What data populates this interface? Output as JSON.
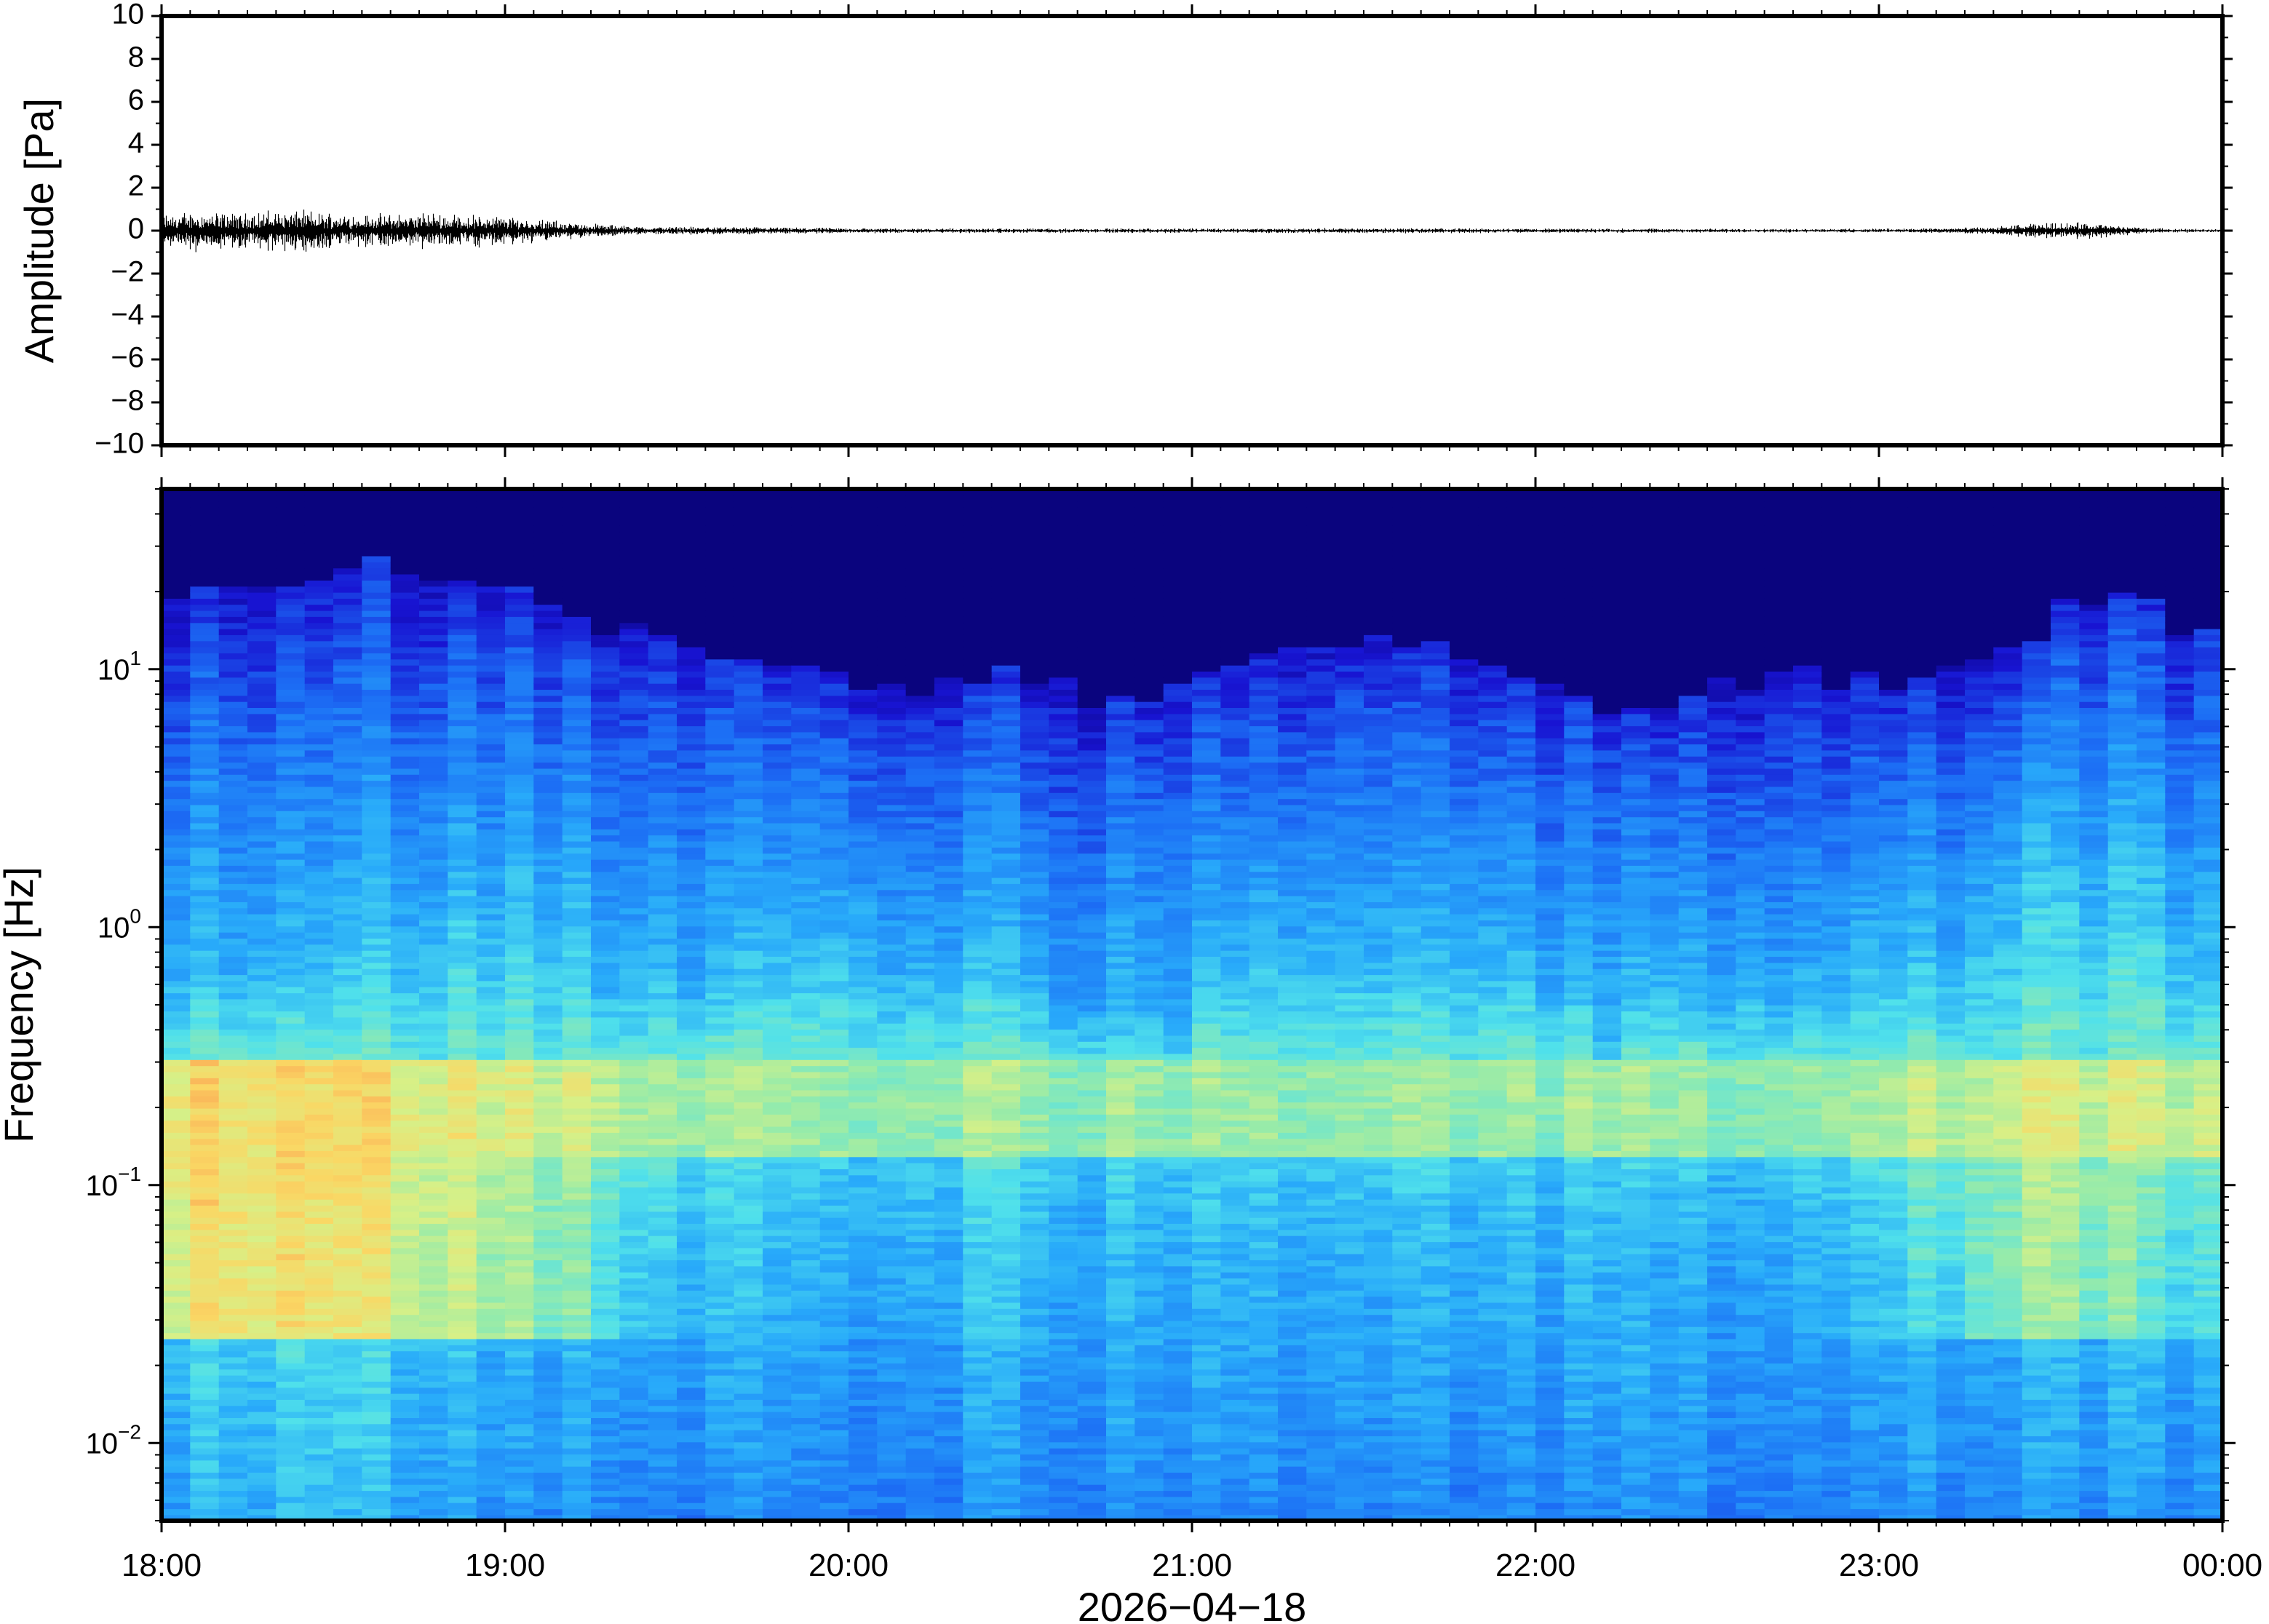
{
  "chart_data": [
    {
      "type": "line",
      "ylabel": "Amplitude [Pa]",
      "ylim": [
        -10,
        10
      ],
      "yticks": [
        "10",
        "8",
        "6",
        "4",
        "2",
        "0",
        "−2",
        "−4",
        "−6",
        "−8",
        "−10"
      ],
      "ytick_values": [
        10,
        8,
        6,
        4,
        2,
        0,
        -2,
        -4,
        -6,
        -8,
        -10
      ],
      "xlim_hours": [
        0,
        6
      ],
      "series": [
        {
          "envelope_hours": [
            0.0,
            0.1,
            0.2,
            0.3,
            0.4,
            0.5,
            0.6,
            0.8,
            1.0,
            1.2,
            1.4,
            1.6,
            2.0,
            2.5,
            3.0,
            3.5,
            4.0,
            4.5,
            5.0,
            5.3,
            5.5,
            5.6,
            5.8,
            6.0
          ],
          "envelope_amplitude": [
            0.5,
            0.6,
            0.55,
            0.6,
            0.65,
            0.55,
            0.5,
            0.55,
            0.45,
            0.25,
            0.12,
            0.12,
            0.08,
            0.07,
            0.07,
            0.08,
            0.07,
            0.06,
            0.06,
            0.1,
            0.25,
            0.25,
            0.07,
            0.05
          ]
        }
      ]
    },
    {
      "type": "heatmap",
      "ylabel": "Frequency [Hz]",
      "yscale": "log",
      "ylim": [
        0.005,
        50
      ],
      "yticks": [
        {
          "base": "10",
          "exp": "1",
          "value": 10
        },
        {
          "base": "10",
          "exp": "0",
          "value": 1
        },
        {
          "base": "10",
          "exp": "−1",
          "value": 0.1
        },
        {
          "base": "10",
          "exp": "−2",
          "value": 0.01
        }
      ],
      "colormap": "jet",
      "xticks": [
        "18:00",
        "19:00",
        "20:00",
        "21:00",
        "22:00",
        "23:00",
        "00:00"
      ],
      "xlabel": "2026−04−18",
      "column_hours": [
        0.0,
        0.25,
        0.5,
        0.75,
        1.0,
        1.25,
        1.5,
        1.75,
        2.0,
        2.25,
        2.5,
        2.75,
        3.0,
        3.25,
        3.5,
        3.75,
        4.0,
        4.25,
        4.5,
        4.75,
        5.0,
        5.25,
        5.5,
        5.75,
        6.0
      ],
      "upper_edge_hz": [
        22,
        24,
        25,
        24,
        20,
        15,
        12,
        10,
        10,
        9,
        10,
        7,
        8,
        12,
        14,
        13,
        8,
        7,
        9,
        10,
        9,
        9,
        16,
        18,
        12
      ],
      "low_power_hz": [
        0.7,
        0.9,
        0.9,
        1.2,
        1.5,
        0.8,
        0.6,
        0.7,
        1.0,
        0.6,
        0.9,
        0.35,
        0.5,
        0.9,
        0.9,
        1.0,
        0.5,
        0.45,
        0.7,
        0.6,
        0.8,
        1.0,
        2.0,
        1.5,
        0.7
      ],
      "peak_level_at_0_1hz": [
        0.78,
        0.82,
        0.8,
        0.74,
        0.68,
        0.6,
        0.5,
        0.47,
        0.45,
        0.47,
        0.5,
        0.45,
        0.45,
        0.48,
        0.45,
        0.47,
        0.46,
        0.45,
        0.45,
        0.47,
        0.5,
        0.6,
        0.65,
        0.6,
        0.55
      ],
      "low_freq_level": [
        0.38,
        0.4,
        0.42,
        0.38,
        0.34,
        0.32,
        0.3,
        0.3,
        0.28,
        0.3,
        0.32,
        0.3,
        0.3,
        0.32,
        0.3,
        0.3,
        0.29,
        0.3,
        0.31,
        0.3,
        0.31,
        0.32,
        0.33,
        0.33,
        0.3
      ],
      "microbarom_band_hz": [
        0.13,
        0.3
      ]
    }
  ]
}
